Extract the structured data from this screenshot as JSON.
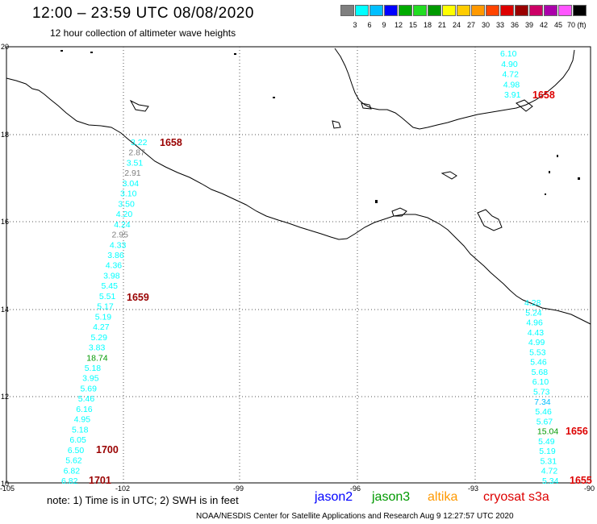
{
  "header": {
    "title": "12:00 – 23:59 UTC 08/08/2020",
    "subtitle": "12 hour collection of altimeter wave heights"
  },
  "legend": {
    "colors": [
      "#7f7f7f",
      "#00ffff",
      "#00bfff",
      "#0000ff",
      "#00aa00",
      "#22dd22",
      "#009900",
      "#ffff00",
      "#ffcc00",
      "#ff9900",
      "#ff4400",
      "#dd0000",
      "#990000",
      "#cc0066",
      "#aa00aa",
      "#ff55ff",
      "#000000"
    ],
    "labels": [
      "3",
      "6",
      "9",
      "12",
      "15",
      "18",
      "21",
      "24",
      "27",
      "30",
      "33",
      "36",
      "39",
      "42",
      "45",
      "70 (ft)"
    ]
  },
  "map": {
    "lat_labels": [
      "20",
      "18",
      "16",
      "14",
      "12",
      "10"
    ],
    "lon_labels": [
      "-105",
      "-102",
      "-99",
      "-96",
      "-93",
      "-90"
    ]
  },
  "tracks": {
    "west_values": [
      "3.22",
      "2.87",
      "3.51",
      "2.91",
      "3.04",
      "3.10",
      "3.50",
      "4.20",
      "4.24",
      "2.95",
      "4.33",
      "3.86",
      "4.36",
      "3.98",
      "5.45",
      "5.51",
      "5.17",
      "5.19",
      "4.27",
      "5.29",
      "3.83",
      "18.74",
      "5.18",
      "3.95",
      "5.69",
      "5.46",
      "6.16",
      "4.95",
      "5.18",
      "6.05",
      "6.50",
      "5.62",
      "6.82",
      "6.82"
    ],
    "west_colors": [
      "#00ffff",
      "#7f7f7f",
      "#00ffff",
      "#7f7f7f",
      "#00ffff",
      "#00ffff",
      "#00ffff",
      "#00ffff",
      "#00ffff",
      "#7f7f7f",
      "#00ffff",
      "#00ffff",
      "#00ffff",
      "#00ffff",
      "#00ffff",
      "#00ffff",
      "#00ffff",
      "#00ffff",
      "#00ffff",
      "#00ffff",
      "#00ffff",
      "#009900",
      "#00ffff",
      "#00ffff",
      "#00ffff",
      "#00ffff",
      "#00ffff",
      "#00ffff",
      "#00ffff",
      "#00ffff",
      "#00ffff",
      "#00ffff",
      "#00ffff",
      "#00ffff"
    ],
    "west_times": [
      "1658",
      "1659",
      "1700",
      "1701"
    ],
    "ne_values": [
      "6.10",
      "4.90",
      "4.72",
      "4.98",
      "3.91"
    ],
    "ne_time": "1658",
    "se_values": [
      "4.28",
      "5.24",
      "4.96",
      "4.43",
      "4.99",
      "5.53",
      "5.46",
      "5.68",
      "6.10",
      "5.73",
      "7.34",
      "5.46",
      "5.67",
      "15.04",
      "5.49",
      "5.19",
      "5.31",
      "4.72",
      "5.34"
    ],
    "se_colors": [
      "#00ffff",
      "#00ffff",
      "#00ffff",
      "#00ffff",
      "#00ffff",
      "#00ffff",
      "#00ffff",
      "#00ffff",
      "#00ffff",
      "#00ffff",
      "#00bfff",
      "#00ffff",
      "#00ffff",
      "#009900",
      "#00ffff",
      "#00ffff",
      "#00ffff",
      "#00ffff",
      "#00ffff"
    ],
    "se_times": [
      "1656",
      "1655"
    ]
  },
  "footer": {
    "note": "note:  1) Time is in UTC;  2) SWH is in feet",
    "satellites": [
      {
        "name": "jason2",
        "color": "#0000ff"
      },
      {
        "name": "jason3",
        "color": "#009900"
      },
      {
        "name": "altika",
        "color": "#ff9900"
      },
      {
        "name": "cryosat s3a",
        "color": "#dd0000"
      }
    ],
    "credit": "NOAA/NESDIS Center for Satellite Applications and Research     Aug  9 12:27:57 UTC 2020"
  }
}
